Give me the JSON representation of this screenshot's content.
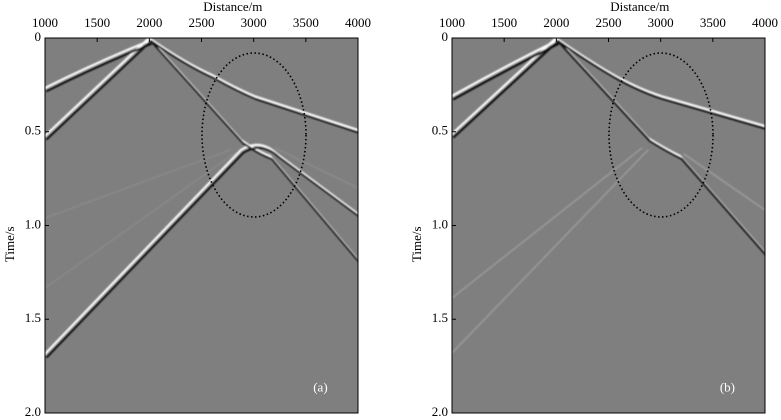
{
  "chart_data": [
    {
      "type": "seismic-image",
      "xlabel": "Distance/m",
      "ylabel": "Time/s",
      "annotation": "(a)",
      "xlim": [
        1000,
        4000
      ],
      "xticks": [
        1000,
        1500,
        2000,
        2500,
        3000,
        3500,
        4000
      ],
      "xaxis_position": "top",
      "ylim": [
        0,
        2
      ],
      "yticks": [
        0,
        0.5,
        {
          "value": 1,
          "label": "1.0"
        },
        1.5,
        {
          "value": 2,
          "label": "2.0"
        }
      ],
      "y_inverted": true,
      "background": "#7f7f7f"
    },
    {
      "type": "seismic-image",
      "xlabel": "Distance/m",
      "ylabel": "Time/s",
      "annotation": "(b)",
      "xlim": [
        1000,
        4000
      ],
      "xticks": [
        1000,
        1500,
        2000,
        2500,
        3000,
        3500,
        4000
      ],
      "xaxis_position": "top",
      "ylim": [
        0,
        2
      ],
      "yticks": [
        0,
        0.5,
        {
          "value": 1,
          "label": "1.0"
        },
        1.5,
        {
          "value": 2,
          "label": "2.0"
        }
      ],
      "y_inverted": true,
      "background": "#7f7f7f"
    }
  ]
}
